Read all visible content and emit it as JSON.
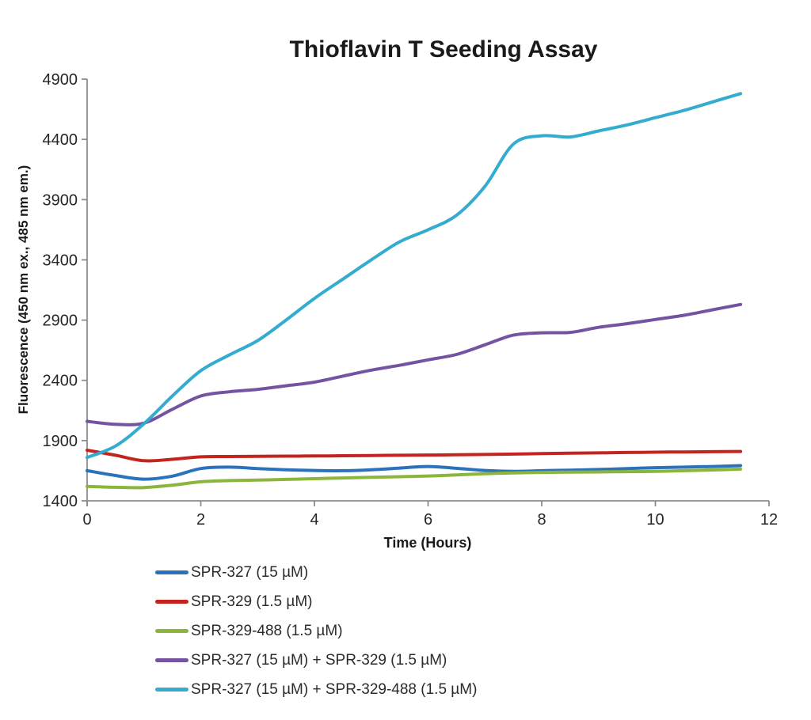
{
  "chart": {
    "title": "Thioflavin T Seeding Assay",
    "y_axis_title": "Fluorescence (450 nm ex., 485 nm em.)",
    "x_axis_title": "Time (Hours)"
  },
  "chart_data": {
    "type": "line",
    "title": "Thioflavin T Seeding Assay",
    "xlabel": "Time (Hours)",
    "ylabel": "Fluorescence (450 nm ex., 485 nm em.)",
    "xlim": [
      0,
      12
    ],
    "ylim": [
      1400,
      4900
    ],
    "grid": false,
    "legend_position": "bottom-left",
    "x_ticks": [
      0,
      2,
      4,
      6,
      8,
      10,
      12
    ],
    "y_ticks": [
      1400,
      1900,
      2400,
      2900,
      3400,
      3900,
      4400,
      4900
    ],
    "axis_color": "#8c8c8c",
    "x": [
      0,
      0.5,
      1,
      1.5,
      2,
      2.5,
      3,
      3.5,
      4,
      4.5,
      5,
      5.5,
      6,
      6.5,
      7,
      7.5,
      8,
      8.5,
      9,
      9.5,
      10,
      10.5,
      11,
      11.5
    ],
    "series": [
      {
        "name": "SPR-327 (15 µM)",
        "color": "#2B72BC",
        "values": [
          1650,
          1610,
          1580,
          1605,
          1668,
          1680,
          1668,
          1658,
          1652,
          1650,
          1658,
          1672,
          1685,
          1670,
          1652,
          1645,
          1650,
          1655,
          1660,
          1668,
          1675,
          1680,
          1685,
          1692
        ]
      },
      {
        "name": "SPR-329 (1.5 µM)",
        "color": "#C3251E",
        "values": [
          1820,
          1778,
          1733,
          1745,
          1765,
          1768,
          1770,
          1771,
          1772,
          1774,
          1776,
          1778,
          1780,
          1782,
          1785,
          1788,
          1792,
          1795,
          1798,
          1801,
          1804,
          1806,
          1808,
          1810
        ]
      },
      {
        "name": "SPR-329-488 (1.5 µM)",
        "color": "#8CB53C",
        "values": [
          1520,
          1512,
          1510,
          1530,
          1558,
          1568,
          1572,
          1578,
          1584,
          1590,
          1596,
          1600,
          1606,
          1615,
          1625,
          1632,
          1636,
          1638,
          1640,
          1642,
          1645,
          1650,
          1656,
          1663
        ]
      },
      {
        "name": "SPR-327 (15 µM) + SPR-329 (1.5 µM)",
        "color": "#7353A2",
        "values": [
          2060,
          2035,
          2045,
          2160,
          2270,
          2305,
          2325,
          2355,
          2385,
          2435,
          2485,
          2525,
          2570,
          2615,
          2695,
          2775,
          2795,
          2798,
          2840,
          2870,
          2905,
          2940,
          2985,
          3030
        ]
      },
      {
        "name": "SPR-327 (15 µM) + SPR-329-488 (1.5 µM)",
        "color": "#34ACD0",
        "values": [
          1760,
          1855,
          2040,
          2270,
          2480,
          2610,
          2730,
          2900,
          3080,
          3240,
          3400,
          3550,
          3650,
          3770,
          4010,
          4360,
          4430,
          4420,
          4470,
          4520,
          4580,
          4640,
          4710,
          4780
        ]
      }
    ]
  }
}
